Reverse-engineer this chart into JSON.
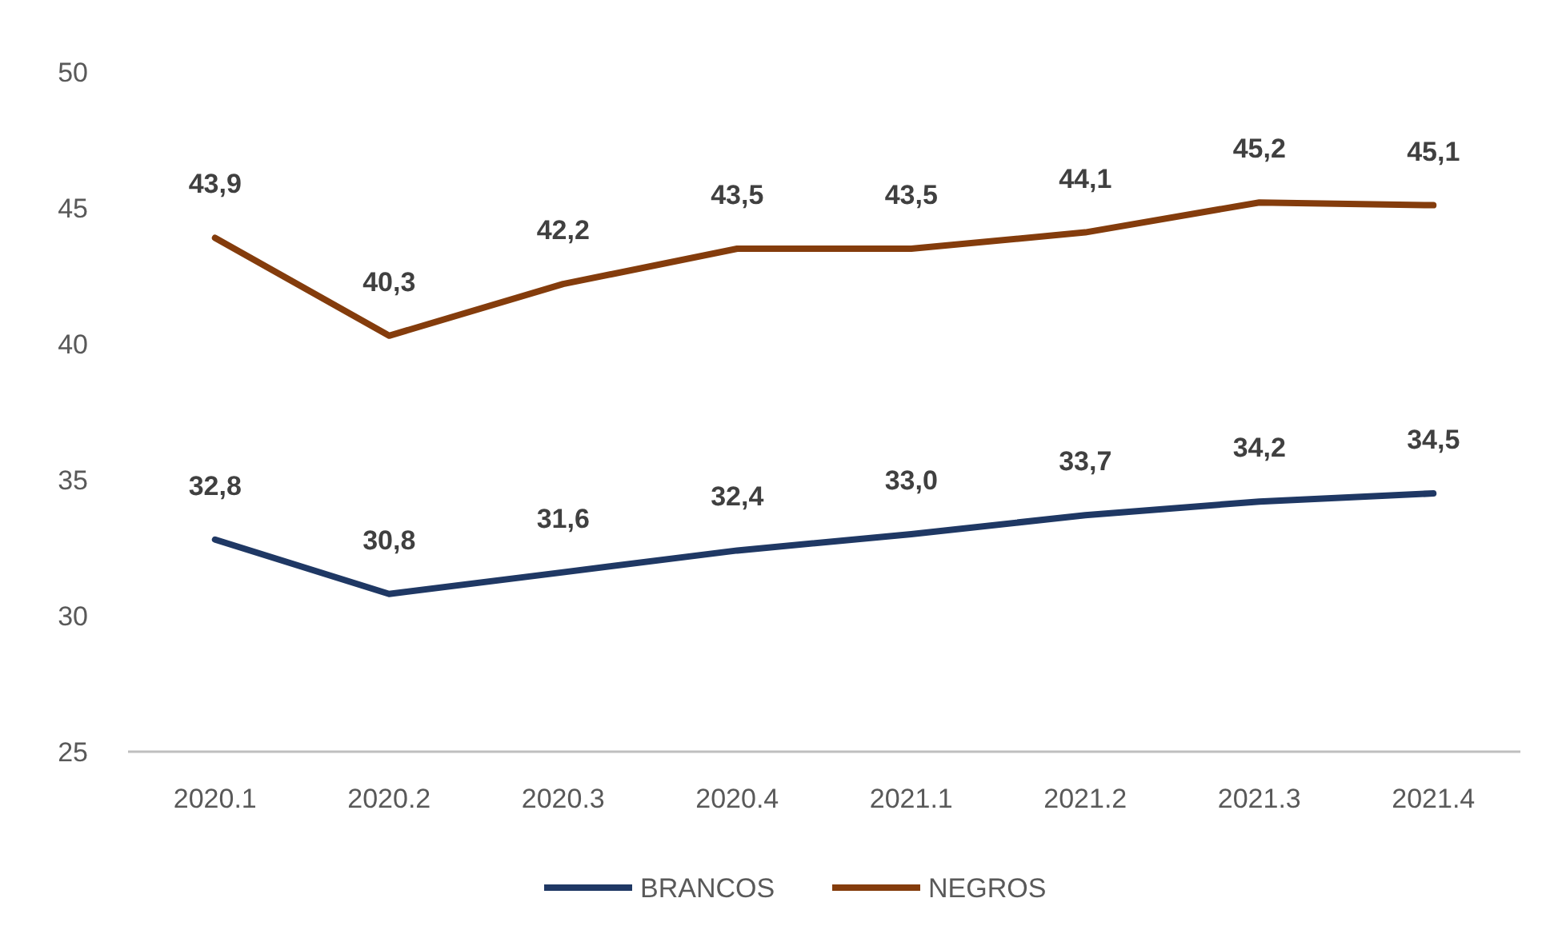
{
  "chart_data": {
    "type": "line",
    "categories": [
      "2020.1",
      "2020.2",
      "2020.3",
      "2020.4",
      "2021.1",
      "2021.2",
      "2021.3",
      "2021.4"
    ],
    "series": [
      {
        "name": "BRANCOS",
        "color": "#1f3864",
        "values": [
          32.8,
          30.8,
          31.6,
          32.4,
          33.0,
          33.7,
          34.2,
          34.5
        ],
        "value_labels": [
          "32,8",
          "30,8",
          "31,6",
          "32,4",
          "33,0",
          "33,7",
          "34,2",
          "34,5"
        ]
      },
      {
        "name": "NEGROS",
        "color": "#843c0c",
        "values": [
          43.9,
          40.3,
          42.2,
          43.5,
          43.5,
          44.1,
          45.2,
          45.1
        ],
        "value_labels": [
          "43,9",
          "40,3",
          "42,2",
          "43,5",
          "43,5",
          "44,1",
          "45,2",
          "45,1"
        ]
      }
    ],
    "ylim": [
      25,
      50
    ],
    "yticks": [
      25,
      30,
      35,
      40,
      45,
      50
    ],
    "grid": false,
    "legend": "bottom",
    "marker": "none",
    "line_style": "solid"
  }
}
